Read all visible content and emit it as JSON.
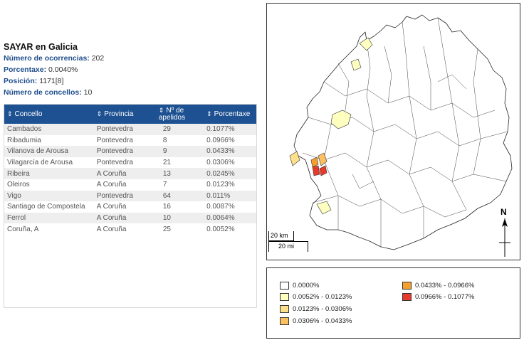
{
  "title": "SAYAR en Galicia",
  "stats": [
    {
      "label": "Número de ocorrencias:",
      "value": "202"
    },
    {
      "label": "Porcentaxe:",
      "value": "0.0040%"
    },
    {
      "label": "Posición:",
      "value": "1171[8]"
    },
    {
      "label": "Número de concellos:",
      "value": "10"
    }
  ],
  "table": {
    "headers": [
      "Concello",
      "Provincia",
      "Nº de apelidos",
      "Porcentaxe"
    ],
    "rows": [
      [
        "Cambados",
        "Pontevedra",
        "29",
        "0.1077%"
      ],
      [
        "Ribadumia",
        "Pontevedra",
        "8",
        "0.0966%"
      ],
      [
        "Vilanova de Arousa",
        "Pontevedra",
        "9",
        "0.0433%"
      ],
      [
        "Vilagarcía de Arousa",
        "Pontevedra",
        "21",
        "0.0306%"
      ],
      [
        "Ribeira",
        "A Coruña",
        "13",
        "0.0245%"
      ],
      [
        "Oleiros",
        "A Coruña",
        "7",
        "0.0123%"
      ],
      [
        "Vigo",
        "Pontevedra",
        "64",
        "0.011%"
      ],
      [
        "Santiago de Compostela",
        "A Coruña",
        "16",
        "0.0087%"
      ],
      [
        "Ferrol",
        "A Coruña",
        "10",
        "0.0064%"
      ],
      [
        "Coruña, A",
        "A Coruña",
        "25",
        "0.0052%"
      ]
    ]
  },
  "map": {
    "scale_km": "20 km",
    "scale_mi": "20 mi",
    "north": "N"
  },
  "legend": [
    {
      "label": "0.0000%",
      "color": "#ffffff"
    },
    {
      "label": "0.0052% - 0.0123%",
      "color": "#ffffc0"
    },
    {
      "label": "0.0123% - 0.0306%",
      "color": "#ffe08a"
    },
    {
      "label": "0.0306% - 0.0433%",
      "color": "#fdc060"
    },
    {
      "label": "0.0433% - 0.0966%",
      "color": "#f5a02c"
    },
    {
      "label": "0.0966% - 0.1077%",
      "color": "#e8392b"
    }
  ]
}
